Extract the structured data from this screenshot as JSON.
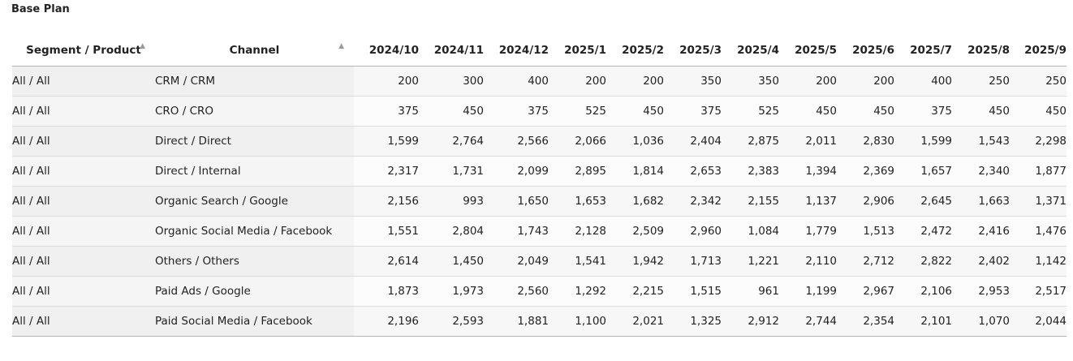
{
  "page": {
    "title": "Base Plan"
  },
  "table": {
    "headers": {
      "segment": "Segment / Product",
      "channel": "Channel",
      "months": [
        "2024/10",
        "2024/11",
        "2024/12",
        "2025/1",
        "2025/2",
        "2025/3",
        "2025/4",
        "2025/5",
        "2025/6",
        "2025/7",
        "2025/8",
        "2025/9"
      ]
    },
    "rows": [
      {
        "segment": "All / All",
        "channel": "CRM / CRM",
        "values": [
          "200",
          "300",
          "400",
          "200",
          "200",
          "350",
          "350",
          "200",
          "200",
          "400",
          "250",
          "250"
        ]
      },
      {
        "segment": "All / All",
        "channel": "CRO / CRO",
        "values": [
          "375",
          "450",
          "375",
          "525",
          "450",
          "375",
          "525",
          "450",
          "450",
          "375",
          "450",
          "450"
        ]
      },
      {
        "segment": "All / All",
        "channel": "Direct / Direct",
        "values": [
          "1,599",
          "2,764",
          "2,566",
          "2,066",
          "1,036",
          "2,404",
          "2,875",
          "2,011",
          "2,830",
          "1,599",
          "1,543",
          "2,298"
        ]
      },
      {
        "segment": "All / All",
        "channel": "Direct / Internal",
        "values": [
          "2,317",
          "1,731",
          "2,099",
          "2,895",
          "1,814",
          "2,653",
          "2,383",
          "1,394",
          "2,369",
          "1,657",
          "2,340",
          "1,877"
        ]
      },
      {
        "segment": "All / All",
        "channel": "Organic Search / Google",
        "values": [
          "2,156",
          "993",
          "1,650",
          "1,653",
          "1,682",
          "2,342",
          "2,155",
          "1,137",
          "2,906",
          "2,645",
          "1,663",
          "1,371"
        ]
      },
      {
        "segment": "All / All",
        "channel": "Organic Social Media / Facebook",
        "values": [
          "1,551",
          "2,804",
          "1,743",
          "2,128",
          "2,509",
          "2,960",
          "1,084",
          "1,779",
          "1,513",
          "2,472",
          "2,416",
          "1,476"
        ]
      },
      {
        "segment": "All / All",
        "channel": "Others / Others",
        "values": [
          "2,614",
          "1,450",
          "2,049",
          "1,541",
          "1,942",
          "1,713",
          "1,221",
          "2,110",
          "2,712",
          "2,822",
          "2,402",
          "1,142"
        ]
      },
      {
        "segment": "All / All",
        "channel": "Paid Ads / Google",
        "values": [
          "1,873",
          "1,973",
          "2,560",
          "1,292",
          "2,215",
          "1,515",
          "961",
          "1,199",
          "2,967",
          "2,106",
          "2,953",
          "2,517"
        ]
      },
      {
        "segment": "All / All",
        "channel": "Paid Social Media / Facebook",
        "values": [
          "2,196",
          "2,593",
          "1,881",
          "1,100",
          "2,021",
          "1,325",
          "2,912",
          "2,744",
          "2,354",
          "2,101",
          "1,070",
          "2,044"
        ]
      }
    ]
  },
  "icons": {
    "sort": "sort-icon"
  }
}
